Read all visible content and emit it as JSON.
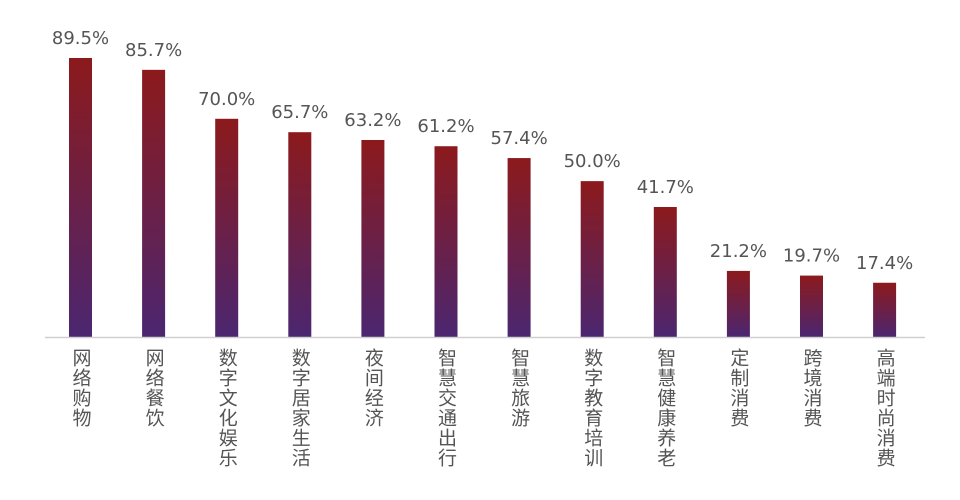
{
  "chart_data": {
    "type": "bar",
    "categories": [
      "网络购物",
      "网络餐饮",
      "数字文化娱乐",
      "数字居家生活",
      "夜间经济",
      "智慧交通出行",
      "智慧旅游",
      "数字教育培训",
      "智慧健康养老",
      "定制消费",
      "跨境消费",
      "高端时尚消费"
    ],
    "values": [
      89.5,
      85.7,
      70.0,
      65.7,
      63.2,
      61.2,
      57.4,
      50.0,
      41.7,
      21.2,
      19.7,
      17.4
    ],
    "data_labels": [
      "89.5%",
      "85.7%",
      "70.0%",
      "65.7%",
      "63.2%",
      "61.2%",
      "57.4%",
      "50.0%",
      "41.7%",
      "21.2%",
      "19.7%",
      "17.4%"
    ],
    "ylim": [
      0,
      100
    ],
    "grid": false,
    "bar_gradient": {
      "top": "#8c1a1c",
      "bottom": "#4b2670"
    },
    "label_color": "#555555",
    "axis_color": "#d0d0d0"
  }
}
